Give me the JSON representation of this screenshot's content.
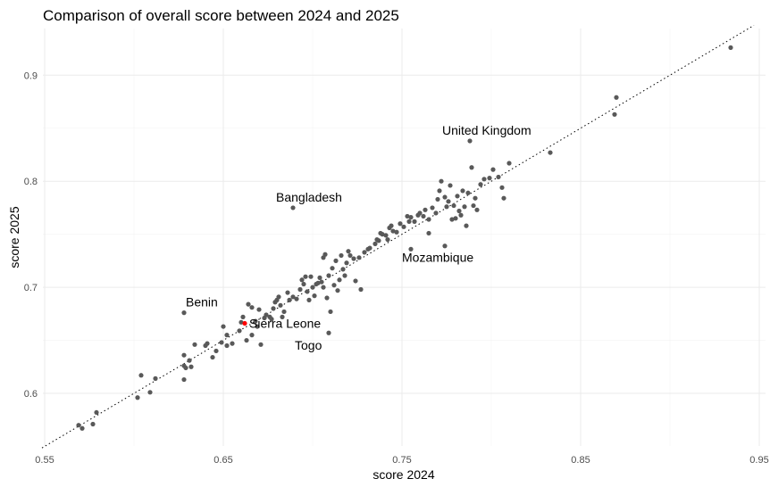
{
  "chart_data": {
    "type": "scatter",
    "title": "Comparison of overall score between 2024 and 2025",
    "xlabel": "score 2024",
    "ylabel": "score 2025",
    "xlim": [
      0.55,
      0.955
    ],
    "ylim": [
      0.548,
      0.948
    ],
    "x_ticks": [
      0.55,
      0.65,
      0.75,
      0.85,
      0.95
    ],
    "x_tick_labels": [
      "0.55",
      "0.65",
      "0.75",
      "0.85",
      "0.95"
    ],
    "y_ticks": [
      0.6,
      0.7,
      0.8,
      0.9
    ],
    "y_tick_labels": [
      "0.6",
      "0.7",
      "0.8",
      "0.9"
    ],
    "grid": true,
    "reference_line": "y = x (dotted)",
    "colors": {
      "points": "#595959",
      "highlight": "#ff0000",
      "reference_line": "#000000"
    },
    "points": [
      [
        0.569,
        0.57
      ],
      [
        0.571,
        0.567
      ],
      [
        0.577,
        0.571
      ],
      [
        0.579,
        0.582
      ],
      [
        0.602,
        0.596
      ],
      [
        0.604,
        0.617
      ],
      [
        0.609,
        0.601
      ],
      [
        0.612,
        0.614
      ],
      [
        0.628,
        0.613
      ],
      [
        0.628,
        0.626
      ],
      [
        0.629,
        0.624
      ],
      [
        0.628,
        0.636
      ],
      [
        0.631,
        0.631
      ],
      [
        0.632,
        0.625
      ],
      [
        0.634,
        0.646
      ],
      [
        0.64,
        0.645
      ],
      [
        0.641,
        0.647
      ],
      [
        0.644,
        0.634
      ],
      [
        0.646,
        0.64
      ],
      [
        0.649,
        0.648
      ],
      [
        0.65,
        0.663
      ],
      [
        0.652,
        0.655
      ],
      [
        0.652,
        0.645
      ],
      [
        0.655,
        0.647
      ],
      [
        0.659,
        0.659
      ],
      [
        0.66,
        0.667
      ],
      [
        0.661,
        0.672
      ],
      [
        0.663,
        0.65
      ],
      [
        0.664,
        0.684
      ],
      [
        0.666,
        0.681
      ],
      [
        0.666,
        0.655
      ],
      [
        0.668,
        0.668
      ],
      [
        0.669,
        0.663
      ],
      [
        0.67,
        0.679
      ],
      [
        0.671,
        0.646
      ],
      [
        0.673,
        0.671
      ],
      [
        0.674,
        0.674
      ],
      [
        0.676,
        0.672
      ],
      [
        0.677,
        0.67
      ],
      [
        0.678,
        0.68
      ],
      [
        0.679,
        0.686
      ],
      [
        0.68,
        0.688
      ],
      [
        0.681,
        0.691
      ],
      [
        0.682,
        0.683
      ],
      [
        0.683,
        0.672
      ],
      [
        0.684,
        0.677
      ],
      [
        0.686,
        0.695
      ],
      [
        0.687,
        0.688
      ],
      [
        0.689,
        0.691
      ],
      [
        0.691,
        0.689
      ],
      [
        0.693,
        0.698
      ],
      [
        0.694,
        0.707
      ],
      [
        0.695,
        0.703
      ],
      [
        0.696,
        0.71
      ],
      [
        0.697,
        0.696
      ],
      [
        0.698,
        0.688
      ],
      [
        0.699,
        0.71
      ],
      [
        0.7,
        0.7
      ],
      [
        0.701,
        0.692
      ],
      [
        0.702,
        0.703
      ],
      [
        0.703,
        0.704
      ],
      [
        0.704,
        0.709
      ],
      [
        0.705,
        0.705
      ],
      [
        0.706,
        0.7
      ],
      [
        0.706,
        0.728
      ],
      [
        0.707,
        0.731
      ],
      [
        0.708,
        0.69
      ],
      [
        0.709,
        0.711
      ],
      [
        0.71,
        0.677
      ],
      [
        0.711,
        0.718
      ],
      [
        0.712,
        0.702
      ],
      [
        0.713,
        0.725
      ],
      [
        0.714,
        0.697
      ],
      [
        0.715,
        0.707
      ],
      [
        0.716,
        0.73
      ],
      [
        0.717,
        0.717
      ],
      [
        0.718,
        0.711
      ],
      [
        0.719,
        0.723
      ],
      [
        0.72,
        0.734
      ],
      [
        0.721,
        0.73
      ],
      [
        0.723,
        0.727
      ],
      [
        0.724,
        0.706
      ],
      [
        0.726,
        0.728
      ],
      [
        0.727,
        0.698
      ],
      [
        0.729,
        0.733
      ],
      [
        0.731,
        0.736
      ],
      [
        0.732,
        0.737
      ],
      [
        0.735,
        0.741
      ],
      [
        0.736,
        0.745
      ],
      [
        0.737,
        0.744
      ],
      [
        0.738,
        0.751
      ],
      [
        0.739,
        0.75
      ],
      [
        0.741,
        0.749
      ],
      [
        0.742,
        0.745
      ],
      [
        0.743,
        0.756
      ],
      [
        0.744,
        0.758
      ],
      [
        0.745,
        0.753
      ],
      [
        0.747,
        0.752
      ],
      [
        0.749,
        0.76
      ],
      [
        0.751,
        0.757
      ],
      [
        0.753,
        0.767
      ],
      [
        0.754,
        0.762
      ],
      [
        0.755,
        0.766
      ],
      [
        0.755,
        0.736
      ],
      [
        0.757,
        0.762
      ],
      [
        0.759,
        0.768
      ],
      [
        0.76,
        0.77
      ],
      [
        0.762,
        0.767
      ],
      [
        0.763,
        0.773
      ],
      [
        0.765,
        0.764
      ],
      [
        0.765,
        0.751
      ],
      [
        0.767,
        0.775
      ],
      [
        0.769,
        0.77
      ],
      [
        0.77,
        0.783
      ],
      [
        0.771,
        0.791
      ],
      [
        0.772,
        0.8
      ],
      [
        0.774,
        0.785
      ],
      [
        0.775,
        0.776
      ],
      [
        0.776,
        0.781
      ],
      [
        0.777,
        0.796
      ],
      [
        0.778,
        0.764
      ],
      [
        0.779,
        0.777
      ],
      [
        0.78,
        0.765
      ],
      [
        0.781,
        0.786
      ],
      [
        0.782,
        0.772
      ],
      [
        0.783,
        0.768
      ],
      [
        0.784,
        0.791
      ],
      [
        0.785,
        0.776
      ],
      [
        0.786,
        0.758
      ],
      [
        0.787,
        0.789
      ],
      [
        0.789,
        0.813
      ],
      [
        0.79,
        0.777
      ],
      [
        0.791,
        0.784
      ],
      [
        0.792,
        0.773
      ],
      [
        0.794,
        0.797
      ],
      [
        0.796,
        0.802
      ],
      [
        0.799,
        0.803
      ],
      [
        0.801,
        0.811
      ],
      [
        0.804,
        0.804
      ],
      [
        0.806,
        0.794
      ],
      [
        0.807,
        0.784
      ],
      [
        0.81,
        0.817
      ],
      [
        0.833,
        0.827
      ],
      [
        0.869,
        0.863
      ],
      [
        0.87,
        0.879
      ],
      [
        0.934,
        0.926
      ]
    ],
    "labeled_points": [
      {
        "name": "United Kingdom",
        "x": 0.788,
        "y": 0.838
      },
      {
        "name": "Bangladesh",
        "x": 0.689,
        "y": 0.775
      },
      {
        "name": "Mozambique",
        "x": 0.774,
        "y": 0.739
      },
      {
        "name": "Benin",
        "x": 0.628,
        "y": 0.676
      },
      {
        "name": "Sierra Leone",
        "x": 0.662,
        "y": 0.666,
        "highlight": true
      },
      {
        "name": "Togo",
        "x": 0.709,
        "y": 0.657
      }
    ]
  }
}
